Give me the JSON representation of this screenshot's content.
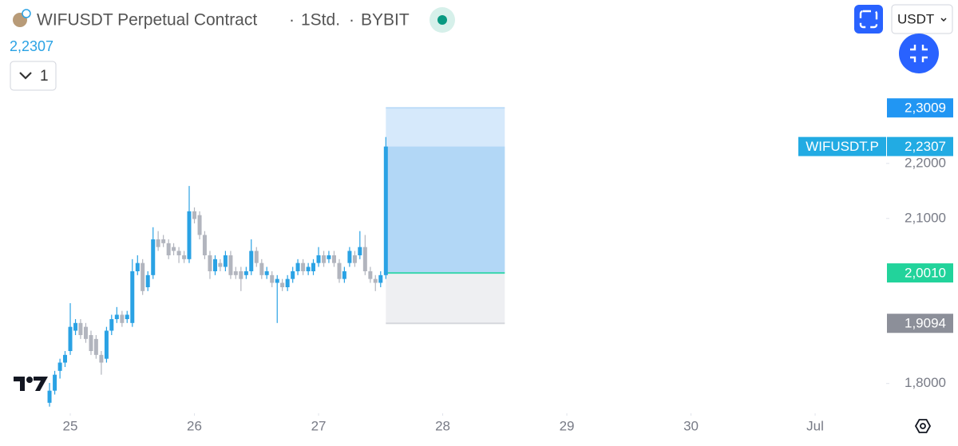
{
  "chart_data": {
    "type": "candlestick",
    "title": "WIFUSDT Perpetual Contract",
    "interval": "1Std.",
    "exchange": "BYBIT",
    "last_price_label": "2,2307",
    "indicator_count": "1",
    "currency": "USDT",
    "symbol_tag": "WIFUSDT.P",
    "up_color": "#2aa2e4",
    "down_color": "#b2b5be",
    "xlim": [
      24.434,
      31.572
    ],
    "ylim": [
      1.743,
      2.497
    ],
    "xticks": [
      25,
      26,
      27,
      28,
      29,
      30,
      {
        "value": 31,
        "label": "Jul"
      }
    ],
    "yticks": [
      {
        "value": 2.2,
        "label": "2,2000"
      },
      {
        "value": 2.1,
        "label": "2,1000"
      },
      {
        "value": 1.8,
        "label": "1,8000"
      }
    ],
    "x": [
      24.833,
      24.875,
      24.917,
      24.958,
      25.0,
      25.042,
      25.083,
      25.125,
      25.167,
      25.208,
      25.25,
      25.292,
      25.333,
      25.375,
      25.417,
      25.458,
      25.5,
      25.542,
      25.583,
      25.625,
      25.667,
      25.708,
      25.75,
      25.792,
      25.833,
      25.875,
      25.917,
      25.958,
      26.0,
      26.042,
      26.083,
      26.125,
      26.167,
      26.208,
      26.25,
      26.292,
      26.333,
      26.375,
      26.417,
      26.458,
      26.5,
      26.542,
      26.583,
      26.625,
      26.667,
      26.708,
      26.75,
      26.792,
      26.833,
      26.875,
      26.917,
      26.958,
      27.0,
      27.042,
      27.083,
      27.125,
      27.167,
      27.208,
      27.25,
      27.292,
      27.333,
      27.375,
      27.417,
      27.458,
      27.5,
      27.542
    ],
    "open": [
      1.765,
      1.787,
      1.823,
      1.838,
      1.859,
      1.896,
      1.91,
      1.903,
      1.888,
      1.881,
      1.852,
      1.845,
      1.896,
      1.917,
      1.925,
      1.917,
      1.91,
      2.004,
      2.019,
      1.975,
      1.997,
      2.062,
      2.062,
      2.055,
      2.048,
      2.041,
      2.033,
      2.026,
      2.113,
      2.106,
      2.07,
      2.033,
      2.004,
      2.019,
      2.012,
      2.033,
      2.004,
      2.004,
      1.997,
      2.004,
      2.041,
      2.019,
      1.997,
      1.997,
      1.983,
      1.983,
      1.975,
      1.99,
      2.004,
      2.019,
      2.004,
      2.004,
      2.019,
      2.033,
      2.026,
      2.033,
      2.019,
      1.99,
      2.019,
      2.033,
      2.033,
      2.048,
      2.004,
      1.99,
      1.983,
      1.997
    ],
    "high": [
      1.801,
      1.823,
      1.845,
      1.859,
      1.946,
      1.917,
      1.917,
      1.91,
      1.896,
      1.888,
      1.859,
      1.903,
      1.925,
      1.939,
      1.932,
      1.932,
      2.026,
      2.033,
      2.026,
      2.004,
      2.084,
      2.077,
      2.07,
      2.062,
      2.055,
      2.048,
      2.041,
      2.159,
      2.12,
      2.113,
      2.077,
      2.041,
      2.033,
      2.026,
      2.041,
      2.041,
      2.012,
      2.012,
      2.012,
      2.062,
      2.048,
      2.026,
      2.012,
      2.004,
      1.997,
      1.99,
      1.997,
      2.012,
      2.026,
      2.026,
      2.019,
      2.026,
      2.048,
      2.041,
      2.041,
      2.041,
      2.026,
      2.012,
      2.048,
      2.041,
      2.077,
      2.07,
      2.012,
      1.997,
      2.004,
      2.248
    ],
    "low": [
      1.758,
      1.78,
      1.809,
      1.83,
      1.852,
      1.888,
      1.881,
      1.874,
      1.852,
      1.845,
      1.816,
      1.838,
      1.888,
      1.91,
      1.903,
      1.91,
      1.903,
      1.997,
      1.961,
      1.968,
      1.99,
      2.041,
      2.048,
      2.026,
      2.033,
      2.019,
      2.019,
      2.019,
      2.091,
      2.062,
      2.026,
      1.99,
      1.997,
      2.004,
      2.004,
      1.99,
      1.99,
      1.968,
      1.99,
      1.997,
      2.012,
      1.99,
      1.99,
      1.975,
      1.91,
      1.968,
      1.968,
      1.983,
      1.997,
      1.997,
      1.997,
      1.997,
      2.012,
      2.012,
      2.019,
      2.012,
      1.983,
      1.983,
      2.012,
      2.012,
      2.026,
      1.997,
      1.983,
      1.968,
      1.975,
      1.99
    ],
    "close": [
      1.787,
      1.816,
      1.838,
      1.852,
      1.903,
      1.91,
      1.888,
      1.881,
      1.859,
      1.852,
      1.838,
      1.896,
      1.917,
      1.925,
      1.91,
      1.925,
      2.004,
      2.019,
      1.968,
      1.997,
      2.062,
      2.048,
      2.055,
      2.033,
      2.041,
      2.033,
      2.026,
      2.113,
      2.099,
      2.07,
      2.033,
      2.004,
      2.026,
      2.012,
      2.033,
      1.997,
      1.997,
      1.99,
      2.004,
      2.041,
      2.019,
      1.997,
      2.004,
      1.983,
      1.99,
      1.975,
      1.99,
      2.004,
      2.019,
      2.004,
      2.012,
      2.019,
      2.033,
      2.019,
      2.033,
      2.019,
      1.99,
      2.004,
      2.041,
      2.019,
      2.048,
      2.004,
      1.99,
      1.983,
      1.997,
      2.2307
    ],
    "position": {
      "x_range": [
        27.542,
        28.5
      ],
      "target": {
        "value": 2.3009,
        "label": "2,3009"
      },
      "entry": {
        "value": 2.001,
        "label": "2,0010"
      },
      "stop": {
        "value": 1.9094,
        "label": "1,9094"
      },
      "last": {
        "value": 2.2307,
        "label": "2,2307"
      }
    }
  }
}
